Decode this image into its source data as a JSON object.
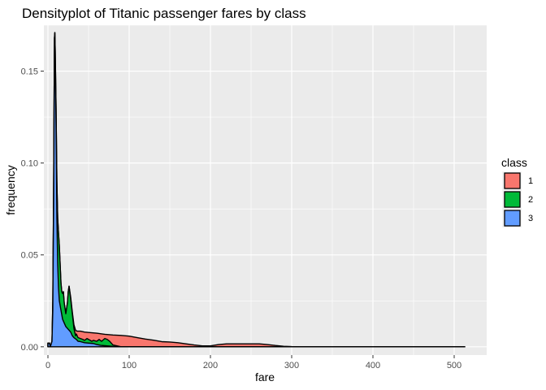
{
  "chart_data": {
    "type": "area",
    "subtype": "stacked density",
    "title": "Densityplot of Titanic passenger fares by class",
    "xlabel": "fare",
    "ylabel": "frequency",
    "xlim": [
      -5,
      540
    ],
    "ylim": [
      -0.0045,
      0.175
    ],
    "x_ticks": [
      0,
      100,
      200,
      300,
      400,
      500
    ],
    "x_tick_labels": [
      "0",
      "100",
      "200",
      "300",
      "400",
      "500"
    ],
    "y_ticks": [
      0.0,
      0.05,
      0.1,
      0.15
    ],
    "y_tick_labels": [
      "0.00",
      "0.05",
      "0.10",
      "0.15"
    ],
    "grid": true,
    "legend_position": "right",
    "legend_title": "class",
    "series": [
      {
        "name": "3",
        "color": "#619CFF",
        "points": [
          [
            0,
            0
          ],
          [
            0,
            0.002
          ],
          [
            2,
            0.002
          ],
          [
            2,
            0.0015
          ],
          [
            3,
            0
          ],
          [
            5,
            0.003
          ],
          [
            6,
            0.02
          ],
          [
            7,
            0.08
          ],
          [
            8,
            0.16
          ],
          [
            8.5,
            0.164
          ],
          [
            9,
            0.15
          ],
          [
            10,
            0.12
          ],
          [
            11,
            0.07
          ],
          [
            12,
            0.045
          ],
          [
            13,
            0.032
          ],
          [
            14,
            0.025
          ],
          [
            16,
            0.02
          ],
          [
            18,
            0.015
          ],
          [
            20,
            0.013
          ],
          [
            22,
            0.011
          ],
          [
            24,
            0.01
          ],
          [
            26,
            0.009
          ],
          [
            28,
            0.008
          ],
          [
            30,
            0.006
          ],
          [
            32,
            0.005
          ],
          [
            35,
            0.004
          ],
          [
            37,
            0.003
          ],
          [
            40,
            0.0028
          ],
          [
            45,
            0.0022
          ],
          [
            50,
            0.002
          ],
          [
            56,
            0.0018
          ],
          [
            60,
            0.0012
          ],
          [
            65,
            0.0008
          ],
          [
            70,
            0.0006
          ],
          [
            80,
            0.0002
          ],
          [
            90,
            0
          ],
          [
            513,
            0
          ]
        ]
      },
      {
        "name": "2",
        "color": "#00BA38",
        "points": [
          [
            0,
            0
          ],
          [
            0,
            0.002
          ],
          [
            2,
            0.002
          ],
          [
            2,
            0.0015
          ],
          [
            3,
            0
          ],
          [
            5,
            0.003
          ],
          [
            6,
            0.025
          ],
          [
            7,
            0.085
          ],
          [
            8,
            0.168
          ],
          [
            8.5,
            0.171
          ],
          [
            9,
            0.16
          ],
          [
            10,
            0.13
          ],
          [
            11,
            0.09
          ],
          [
            12,
            0.07
          ],
          [
            13,
            0.062
          ],
          [
            14,
            0.055
          ],
          [
            15,
            0.045
          ],
          [
            16,
            0.035
          ],
          [
            17,
            0.03
          ],
          [
            18,
            0.029
          ],
          [
            19,
            0.03
          ],
          [
            20,
            0.024
          ],
          [
            22,
            0.018
          ],
          [
            24,
            0.024
          ],
          [
            25,
            0.03
          ],
          [
            26,
            0.033
          ],
          [
            28,
            0.026
          ],
          [
            30,
            0.018
          ],
          [
            32,
            0.01
          ],
          [
            34,
            0.006
          ],
          [
            35,
            0.007
          ],
          [
            37,
            0.005
          ],
          [
            40,
            0.0045
          ],
          [
            43,
            0.004
          ],
          [
            45,
            0.0035
          ],
          [
            48,
            0.0045
          ],
          [
            50,
            0.004
          ],
          [
            54,
            0.003
          ],
          [
            56,
            0.0035
          ],
          [
            60,
            0.003
          ],
          [
            63,
            0.004
          ],
          [
            66,
            0.003
          ],
          [
            70,
            0.0045
          ],
          [
            73,
            0.004
          ],
          [
            76,
            0.003
          ],
          [
            80,
            0.001
          ],
          [
            85,
            0.0005
          ],
          [
            90,
            0
          ],
          [
            513,
            0
          ]
        ]
      },
      {
        "name": "1",
        "color": "#F8766D",
        "points": [
          [
            0,
            0
          ],
          [
            0,
            0.002
          ],
          [
            2,
            0.002
          ],
          [
            2,
            0.0015
          ],
          [
            3,
            0
          ],
          [
            5,
            0.003
          ],
          [
            6,
            0.025
          ],
          [
            7,
            0.085
          ],
          [
            8,
            0.168
          ],
          [
            8.5,
            0.171
          ],
          [
            9,
            0.16
          ],
          [
            10,
            0.13
          ],
          [
            11,
            0.09
          ],
          [
            12,
            0.07
          ],
          [
            13,
            0.062
          ],
          [
            14,
            0.055
          ],
          [
            15,
            0.045
          ],
          [
            16,
            0.035
          ],
          [
            17,
            0.03
          ],
          [
            18,
            0.029
          ],
          [
            19,
            0.03
          ],
          [
            20,
            0.024
          ],
          [
            22,
            0.018
          ],
          [
            24,
            0.024
          ],
          [
            25,
            0.03
          ],
          [
            26,
            0.033
          ],
          [
            28,
            0.027
          ],
          [
            30,
            0.019
          ],
          [
            32,
            0.012
          ],
          [
            34,
            0.009
          ],
          [
            36,
            0.0085
          ],
          [
            40,
            0.0085
          ],
          [
            45,
            0.008
          ],
          [
            50,
            0.0078
          ],
          [
            60,
            0.0074
          ],
          [
            70,
            0.0068
          ],
          [
            80,
            0.0064
          ],
          [
            90,
            0.0062
          ],
          [
            100,
            0.0058
          ],
          [
            110,
            0.005
          ],
          [
            120,
            0.0042
          ],
          [
            130,
            0.0036
          ],
          [
            140,
            0.0028
          ],
          [
            150,
            0.0026
          ],
          [
            160,
            0.0022
          ],
          [
            170,
            0.0016
          ],
          [
            180,
            0.001
          ],
          [
            190,
            0.0005
          ],
          [
            200,
            0.0005
          ],
          [
            210,
            0.0012
          ],
          [
            220,
            0.0016
          ],
          [
            240,
            0.0016
          ],
          [
            260,
            0.0016
          ],
          [
            270,
            0.0012
          ],
          [
            280,
            0.0007
          ],
          [
            290,
            0.0003
          ],
          [
            300,
            0.0001
          ],
          [
            310,
            0
          ],
          [
            513,
            0
          ]
        ]
      }
    ],
    "legend_items": [
      {
        "label": "1",
        "color": "#F8766D"
      },
      {
        "label": "2",
        "color": "#00BA38"
      },
      {
        "label": "3",
        "color": "#619CFF"
      }
    ],
    "colors": {
      "panel_background": "#EBEBEB",
      "grid_major": "#FFFFFF",
      "outline": "#000000"
    }
  }
}
